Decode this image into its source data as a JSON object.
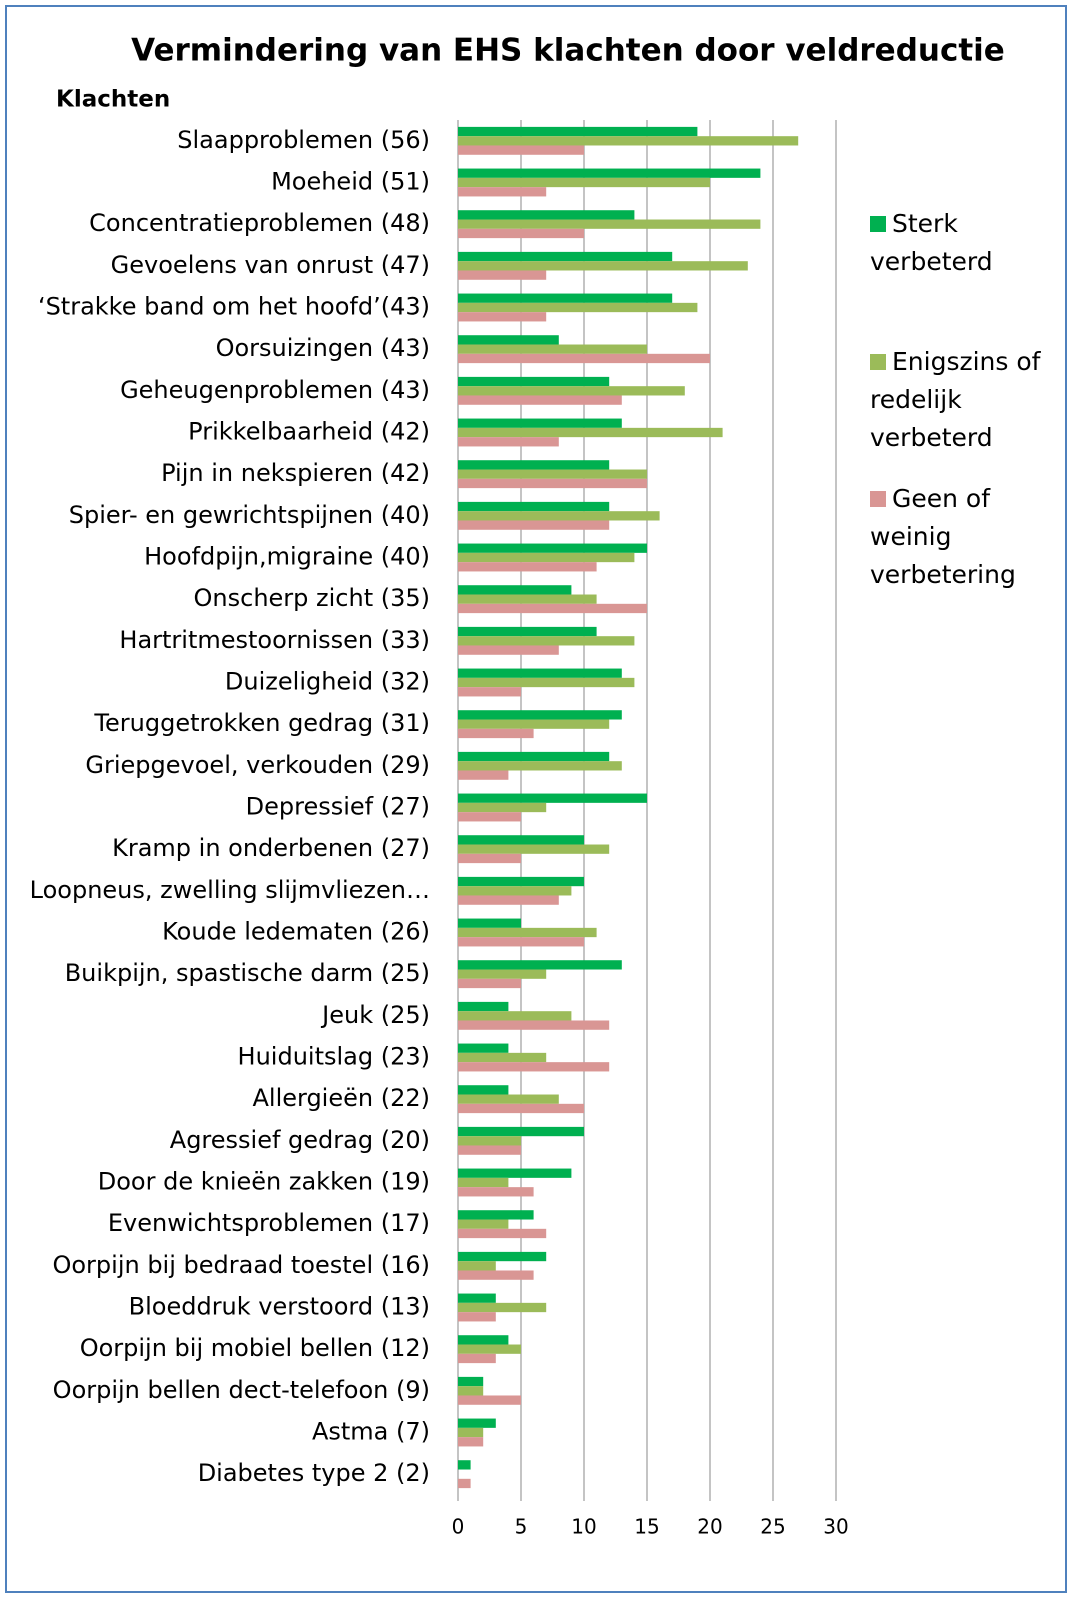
{
  "chart_data": {
    "type": "hbar",
    "title": "Vermindering van EHS klachten door veldreductie",
    "y_label": "Klachten",
    "categories": [
      "Slaapproblemen (56)",
      "Moeheid (51)",
      "Concentratieproblemen (48)",
      "Gevoelens van onrust (47)",
      "‘Strakke band om het hoofd’(43)",
      "Oorsuizingen (43)",
      "Geheugenproblemen (43)",
      "Prikkelbaarheid (42)",
      "Pijn in nekspieren (42)",
      "Spier- en gewrichtspijnen (40)",
      "Hoofdpijn,migraine (40)",
      "Onscherp zicht (35)",
      "Hartritmestoornissen (33)",
      "Duizeligheid (32)",
      "Teruggetrokken gedrag (31)",
      "Griepgevoel, verkouden (29)",
      "Depressief (27)",
      "Kramp in onderbenen (27)",
      "Loopneus, zwelling slijmvliezen…",
      "Koude ledematen (26)",
      "Buikpijn, spastische darm (25)",
      "Jeuk (25)",
      "Huiduitslag (23)",
      "Allergieën (22)",
      "Agressief gedrag (20)",
      "Door de knieën zakken (19)",
      "Evenwichtsproblemen (17)",
      "Oorpijn bij bedraad toestel (16)",
      "Bloeddruk verstoord (13)",
      "Oorpijn bij mobiel bellen (12)",
      "Oorpijn bellen dect-telefoon (9)",
      "Astma (7)",
      "Diabetes type 2 (2)"
    ],
    "series": [
      {
        "name": "Sterk verbeterd",
        "color": "#00b050",
        "values": [
          19,
          24,
          14,
          17,
          17,
          8,
          12,
          13,
          12,
          12,
          15,
          9,
          11,
          13,
          13,
          12,
          15,
          10,
          10,
          5,
          13,
          4,
          4,
          4,
          10,
          9,
          6,
          7,
          3,
          4,
          2,
          3,
          1
        ]
      },
      {
        "name": "Enigszins of redelijk verbeterd",
        "color": "#9bbb59",
        "values": [
          27,
          20,
          24,
          23,
          19,
          15,
          18,
          21,
          15,
          16,
          14,
          11,
          14,
          14,
          12,
          13,
          7,
          12,
          9,
          11,
          7,
          9,
          7,
          8,
          5,
          4,
          4,
          3,
          7,
          5,
          2,
          2,
          0
        ]
      },
      {
        "name": "Geen of weinig verbetering",
        "color": "#d99694",
        "values": [
          10,
          7,
          10,
          7,
          7,
          20,
          13,
          8,
          15,
          12,
          11,
          15,
          8,
          5,
          6,
          4,
          5,
          5,
          8,
          10,
          5,
          12,
          12,
          10,
          5,
          6,
          7,
          6,
          3,
          3,
          5,
          2,
          1
        ]
      }
    ],
    "xlim": [
      0,
      30
    ],
    "xticks": [
      0,
      5,
      10,
      15,
      20,
      25,
      30
    ],
    "grid": true
  }
}
